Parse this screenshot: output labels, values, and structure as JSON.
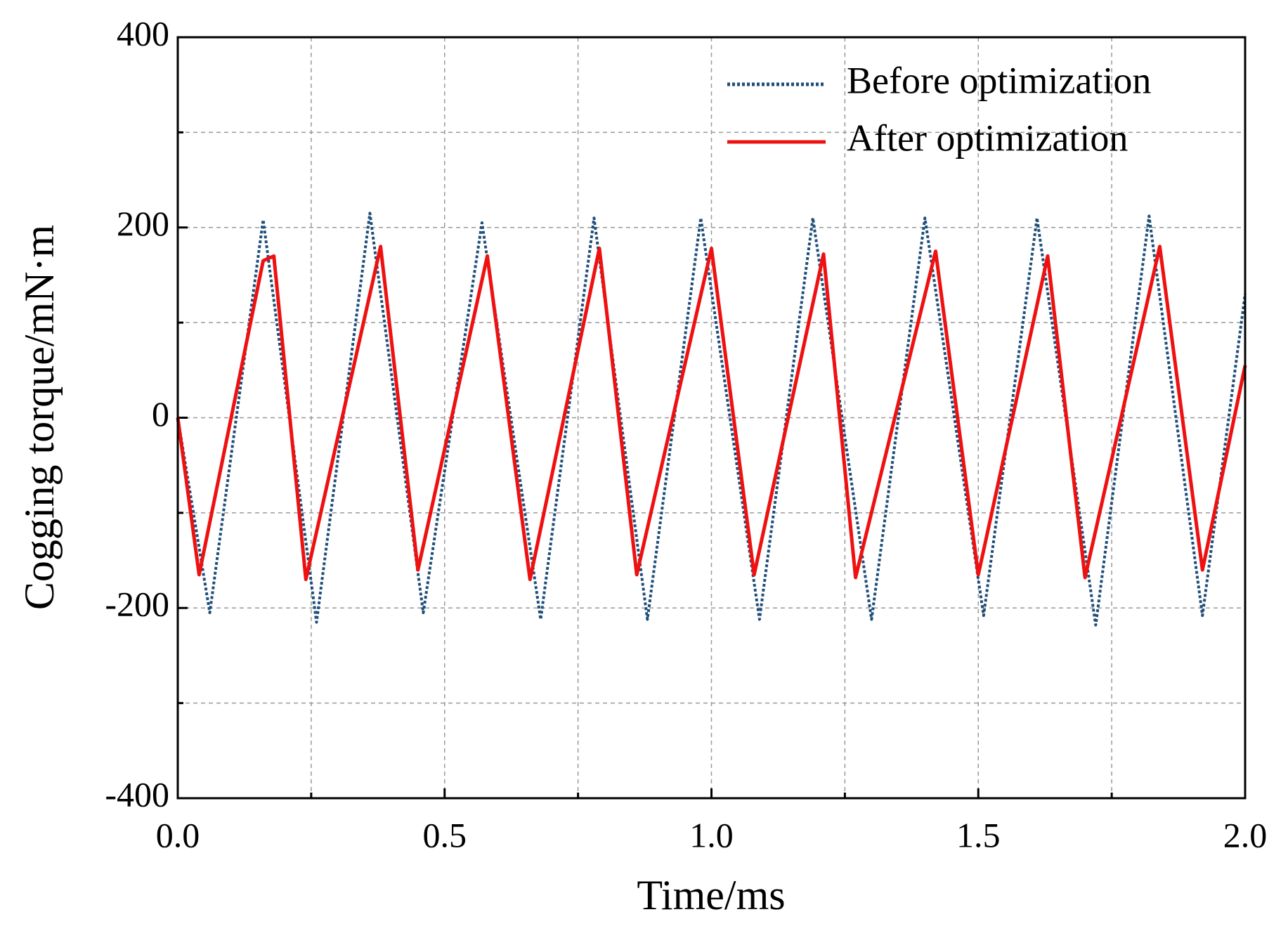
{
  "chart_data": {
    "type": "line",
    "xlabel": "Time/ms",
    "ylabel": "Cogging torque/mN·m",
    "xlim": [
      0,
      2
    ],
    "ylim": [
      -400,
      400
    ],
    "xticks": [
      {
        "value": 0,
        "label": "0.0"
      },
      0.5,
      {
        "value": 1,
        "label": "1.0"
      },
      1.5,
      {
        "value": 2,
        "label": "2.0"
      }
    ],
    "xminorticks": [
      0.25,
      0.75,
      1.25,
      1.75
    ],
    "yticks": [
      -400,
      -200,
      0,
      200,
      400
    ],
    "yminorticks": [
      -300,
      -100,
      100,
      300
    ],
    "grid": true,
    "legend": "upper right",
    "series": [
      {
        "name": "Before optimization",
        "color": "#1f4e79",
        "dash": true,
        "x": [
          0,
          0.06,
          0.16,
          0.26,
          0.36,
          0.46,
          0.57,
          0.68,
          0.78,
          0.88,
          0.98,
          1.09,
          1.19,
          1.3,
          1.4,
          1.51,
          1.61,
          1.72,
          1.82,
          1.92,
          2.0
        ],
        "values": [
          0,
          -205,
          208,
          -215,
          215,
          -205,
          205,
          -212,
          210,
          -212,
          210,
          -212,
          210,
          -212,
          210,
          -208,
          210,
          -218,
          212,
          -208,
          130
        ]
      },
      {
        "name": "After optimization",
        "color": "#ee1111",
        "dash": false,
        "x": [
          0,
          0.04,
          0.16,
          0.18,
          0.24,
          0.38,
          0.45,
          0.58,
          0.66,
          0.79,
          0.86,
          1.0,
          1.08,
          1.21,
          1.27,
          1.42,
          1.5,
          1.63,
          1.7,
          1.84,
          1.92,
          2.0
        ],
        "values": [
          0,
          -165,
          165,
          170,
          -170,
          180,
          -160,
          170,
          -170,
          178,
          -165,
          178,
          -165,
          172,
          -168,
          175,
          -165,
          170,
          -168,
          180,
          -160,
          55
        ]
      }
    ]
  }
}
